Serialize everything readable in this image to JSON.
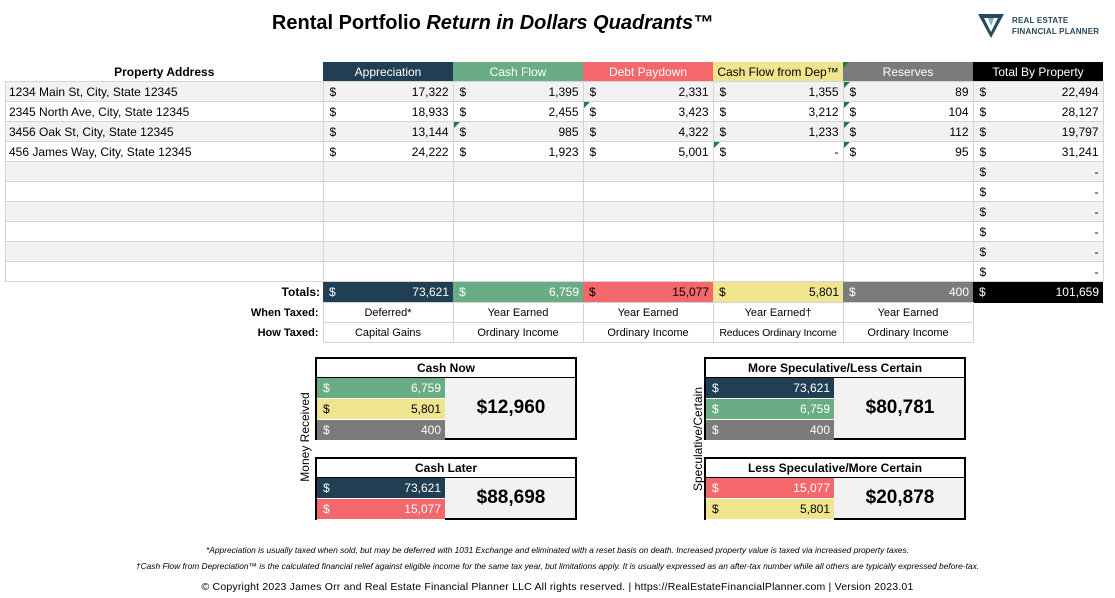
{
  "title": {
    "main": "Rental Portfolio ",
    "italic": "Return in Dollars Quadrants™"
  },
  "logo": {
    "line1": "REAL ESTATE",
    "line2": "FINANCIAL PLANNER"
  },
  "table": {
    "headers": [
      "Property Address",
      "Appreciation",
      "Cash Flow",
      "Debt Paydown",
      "Cash Flow from Dep™",
      "Reserves",
      "Total By Property"
    ],
    "currency": "$",
    "rows": [
      {
        "address": "1234 Main St, City, State 12345",
        "values": [
          "17,322",
          "1,395",
          "2,331",
          "1,355",
          "89",
          "22,494"
        ]
      },
      {
        "address": "2345 North Ave, City, State 12345",
        "values": [
          "18,933",
          "2,455",
          "3,423",
          "3,212",
          "104",
          "28,127"
        ]
      },
      {
        "address": "3456 Oak St, City, State 12345",
        "values": [
          "13,144",
          "985",
          "4,322",
          "1,233",
          "112",
          "19,797"
        ]
      },
      {
        "address": "456 James Way, City, State 12345",
        "values": [
          "24,222",
          "1,923",
          "5,001",
          "-",
          "95",
          "31,241"
        ]
      },
      {
        "address": "",
        "values": [
          "",
          "",
          "",
          "",
          "",
          "-"
        ]
      },
      {
        "address": "",
        "values": [
          "",
          "",
          "",
          "",
          "",
          "-"
        ]
      },
      {
        "address": "",
        "values": [
          "",
          "",
          "",
          "",
          "",
          "-"
        ]
      },
      {
        "address": "",
        "values": [
          "",
          "",
          "",
          "",
          "",
          "-"
        ]
      },
      {
        "address": "",
        "values": [
          "",
          "",
          "",
          "",
          "",
          "-"
        ]
      },
      {
        "address": "",
        "values": [
          "",
          "",
          "",
          "",
          "",
          "-"
        ]
      }
    ],
    "totals_label": "Totals:",
    "totals": [
      "73,621",
      "6,759",
      "15,077",
      "5,801",
      "400",
      "101,659"
    ],
    "when_taxed_label": "When Taxed:",
    "when_taxed": [
      "Deferred*",
      "Year Earned",
      "Year Earned",
      "Year Earned†",
      "Year Earned"
    ],
    "how_taxed_label": "How Taxed:",
    "how_taxed": [
      "Capital Gains",
      "Ordinary Income",
      "Ordinary Income",
      "Reduces Ordinary Income",
      "Ordinary Income"
    ]
  },
  "quadrants": {
    "left_axis_label": "Money Received",
    "right_axis_label": "Speculative/Certain",
    "cash_now": {
      "title": "Cash Now",
      "values": [
        "6,759",
        "5,801",
        "400"
      ],
      "total": "$12,960"
    },
    "cash_later": {
      "title": "Cash Later",
      "values": [
        "73,621",
        "15,077"
      ],
      "total": "$88,698"
    },
    "more_speculative": {
      "title": "More Speculative/Less Certain",
      "values": [
        "73,621",
        "6,759",
        "400"
      ],
      "total": "$80,781"
    },
    "less_speculative": {
      "title": "Less Speculative/More Certain",
      "values": [
        "15,077",
        "5,801"
      ],
      "total": "$20,878"
    }
  },
  "footnotes": {
    "appreciation": "*Appreciation is usually taxed when sold, but may be deferred with 1031 Exchange and eliminated with a reset basis on death. Increased property value is taxed via increased property taxes.",
    "depreciation": "†Cash Flow from Depreciation™ is the calculated financial relief against eligible income for the same tax year, but limitations apply. It is usually expressed as an after-tax number while all others are typically expressed before-tax.",
    "copyright": "© Copyright 2023 James Orr and Real Estate Financial Planner LLC All rights reserved. | https://RealEstateFinancialPlanner.com | Version 2023.01"
  },
  "colors": {
    "appreciation": "#203f54",
    "cash_flow": "#6aac83",
    "debt_paydown": "#f4676b",
    "cash_flow_dep": "#f0e58f",
    "reserves": "#7b7b7b",
    "total": "#000000"
  }
}
